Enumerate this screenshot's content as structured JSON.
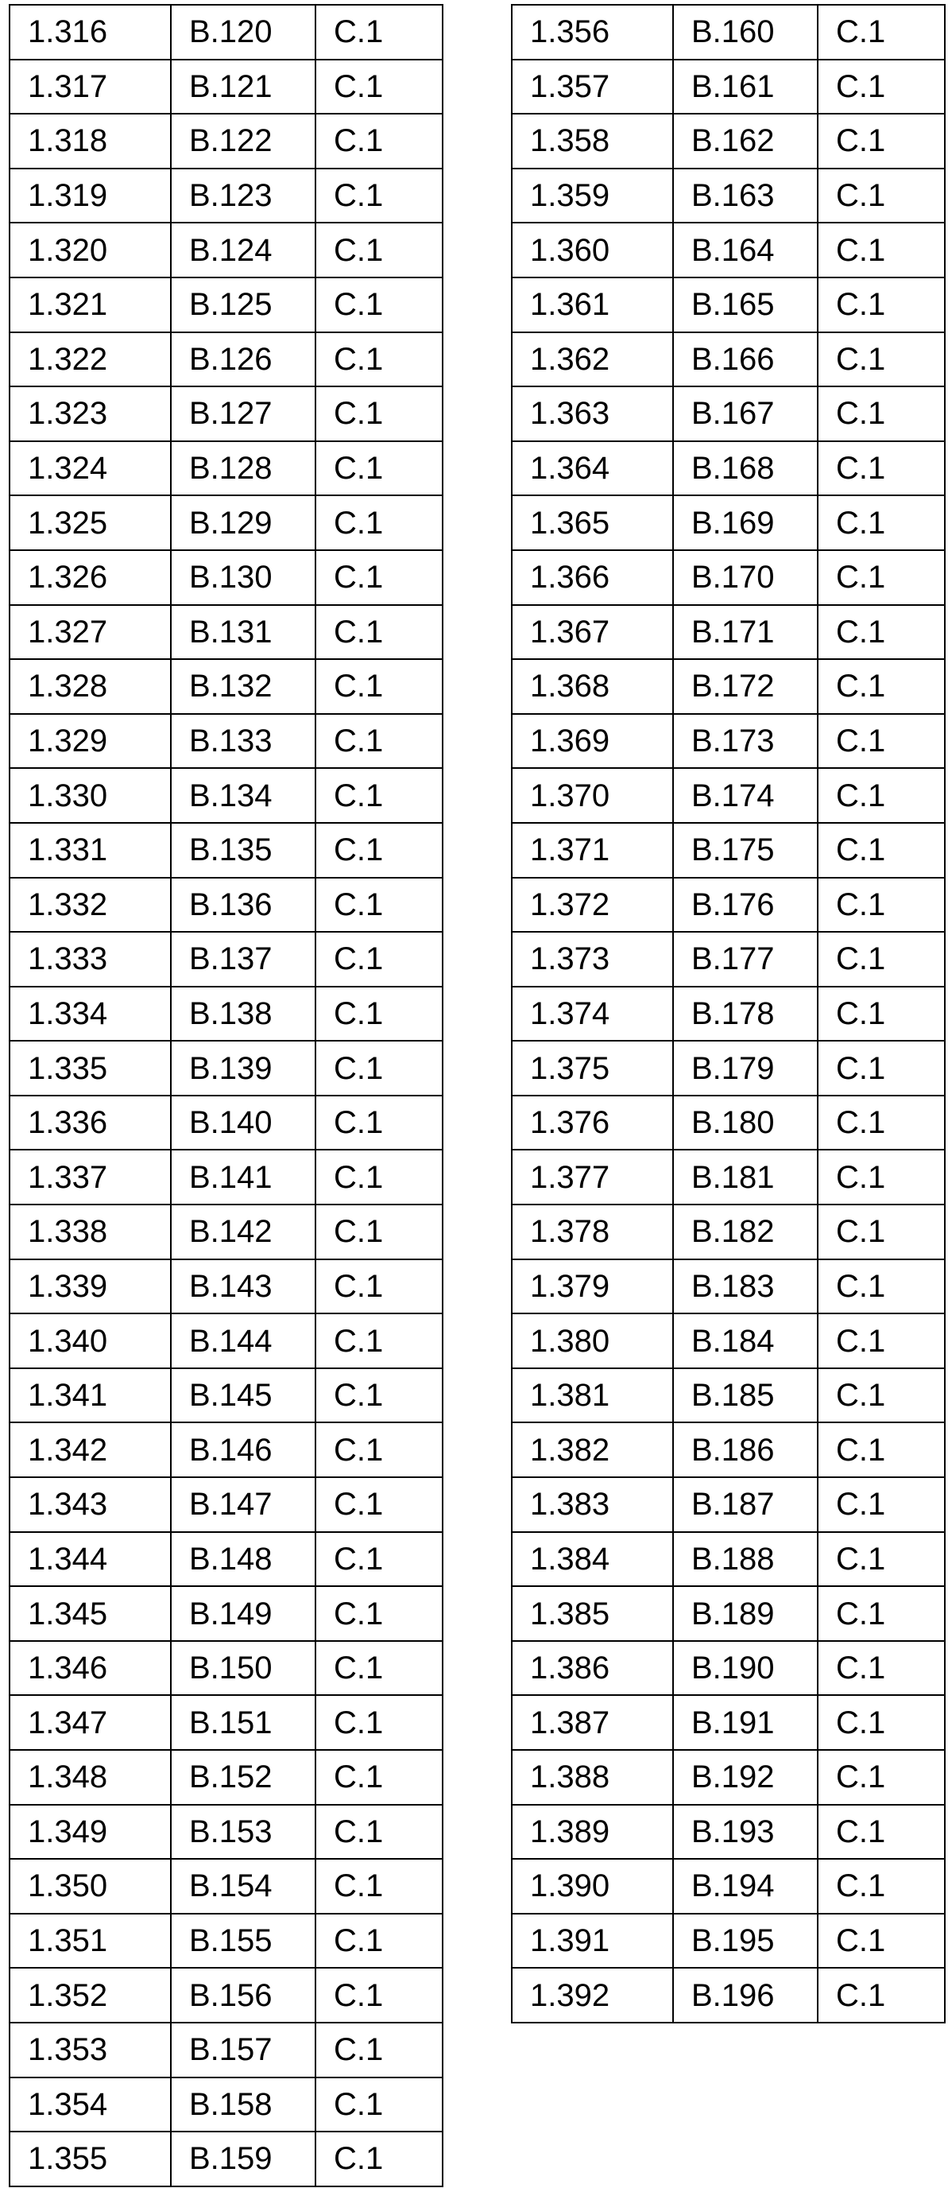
{
  "tables": [
    {
      "rows": [
        [
          "1.316",
          "B.120",
          "C.1"
        ],
        [
          "1.317",
          "B.121",
          "C.1"
        ],
        [
          "1.318",
          "B.122",
          "C.1"
        ],
        [
          "1.319",
          "B.123",
          "C.1"
        ],
        [
          "1.320",
          "B.124",
          "C.1"
        ],
        [
          "1.321",
          "B.125",
          "C.1"
        ],
        [
          "1.322",
          "B.126",
          "C.1"
        ],
        [
          "1.323",
          "B.127",
          "C.1"
        ],
        [
          "1.324",
          "B.128",
          "C.1"
        ],
        [
          "1.325",
          "B.129",
          "C.1"
        ],
        [
          "1.326",
          "B.130",
          "C.1"
        ],
        [
          "1.327",
          "B.131",
          "C.1"
        ],
        [
          "1.328",
          "B.132",
          "C.1"
        ],
        [
          "1.329",
          "B.133",
          "C.1"
        ],
        [
          "1.330",
          "B.134",
          "C.1"
        ],
        [
          "1.331",
          "B.135",
          "C.1"
        ],
        [
          "1.332",
          "B.136",
          "C.1"
        ],
        [
          "1.333",
          "B.137",
          "C.1"
        ],
        [
          "1.334",
          "B.138",
          "C.1"
        ],
        [
          "1.335",
          "B.139",
          "C.1"
        ],
        [
          "1.336",
          "B.140",
          "C.1"
        ],
        [
          "1.337",
          "B.141",
          "C.1"
        ],
        [
          "1.338",
          "B.142",
          "C.1"
        ],
        [
          "1.339",
          "B.143",
          "C.1"
        ],
        [
          "1.340",
          "B.144",
          "C.1"
        ],
        [
          "1.341",
          "B.145",
          "C.1"
        ],
        [
          "1.342",
          "B.146",
          "C.1"
        ],
        [
          "1.343",
          "B.147",
          "C.1"
        ],
        [
          "1.344",
          "B.148",
          "C.1"
        ],
        [
          "1.345",
          "B.149",
          "C.1"
        ],
        [
          "1.346",
          "B.150",
          "C.1"
        ],
        [
          "1.347",
          "B.151",
          "C.1"
        ],
        [
          "1.348",
          "B.152",
          "C.1"
        ],
        [
          "1.349",
          "B.153",
          "C.1"
        ],
        [
          "1.350",
          "B.154",
          "C.1"
        ],
        [
          "1.351",
          "B.155",
          "C.1"
        ],
        [
          "1.352",
          "B.156",
          "C.1"
        ],
        [
          "1.353",
          "B.157",
          "C.1"
        ],
        [
          "1.354",
          "B.158",
          "C.1"
        ],
        [
          "1.355",
          "B.159",
          "C.1"
        ]
      ]
    },
    {
      "rows": [
        [
          "1.356",
          "B.160",
          "C.1"
        ],
        [
          "1.357",
          "B.161",
          "C.1"
        ],
        [
          "1.358",
          "B.162",
          "C.1"
        ],
        [
          "1.359",
          "B.163",
          "C.1"
        ],
        [
          "1.360",
          "B.164",
          "C.1"
        ],
        [
          "1.361",
          "B.165",
          "C.1"
        ],
        [
          "1.362",
          "B.166",
          "C.1"
        ],
        [
          "1.363",
          "B.167",
          "C.1"
        ],
        [
          "1.364",
          "B.168",
          "C.1"
        ],
        [
          "1.365",
          "B.169",
          "C.1"
        ],
        [
          "1.366",
          "B.170",
          "C.1"
        ],
        [
          "1.367",
          "B.171",
          "C.1"
        ],
        [
          "1.368",
          "B.172",
          "C.1"
        ],
        [
          "1.369",
          "B.173",
          "C.1"
        ],
        [
          "1.370",
          "B.174",
          "C.1"
        ],
        [
          "1.371",
          "B.175",
          "C.1"
        ],
        [
          "1.372",
          "B.176",
          "C.1"
        ],
        [
          "1.373",
          "B.177",
          "C.1"
        ],
        [
          "1.374",
          "B.178",
          "C.1"
        ],
        [
          "1.375",
          "B.179",
          "C.1"
        ],
        [
          "1.376",
          "B.180",
          "C.1"
        ],
        [
          "1.377",
          "B.181",
          "C.1"
        ],
        [
          "1.378",
          "B.182",
          "C.1"
        ],
        [
          "1.379",
          "B.183",
          "C.1"
        ],
        [
          "1.380",
          "B.184",
          "C.1"
        ],
        [
          "1.381",
          "B.185",
          "C.1"
        ],
        [
          "1.382",
          "B.186",
          "C.1"
        ],
        [
          "1.383",
          "B.187",
          "C.1"
        ],
        [
          "1.384",
          "B.188",
          "C.1"
        ],
        [
          "1.385",
          "B.189",
          "C.1"
        ],
        [
          "1.386",
          "B.190",
          "C.1"
        ],
        [
          "1.387",
          "B.191",
          "C.1"
        ],
        [
          "1.388",
          "B.192",
          "C.1"
        ],
        [
          "1.389",
          "B.193",
          "C.1"
        ],
        [
          "1.390",
          "B.194",
          "C.1"
        ],
        [
          "1.391",
          "B.195",
          "C.1"
        ],
        [
          "1.392",
          "B.196",
          "C.1"
        ]
      ]
    }
  ]
}
